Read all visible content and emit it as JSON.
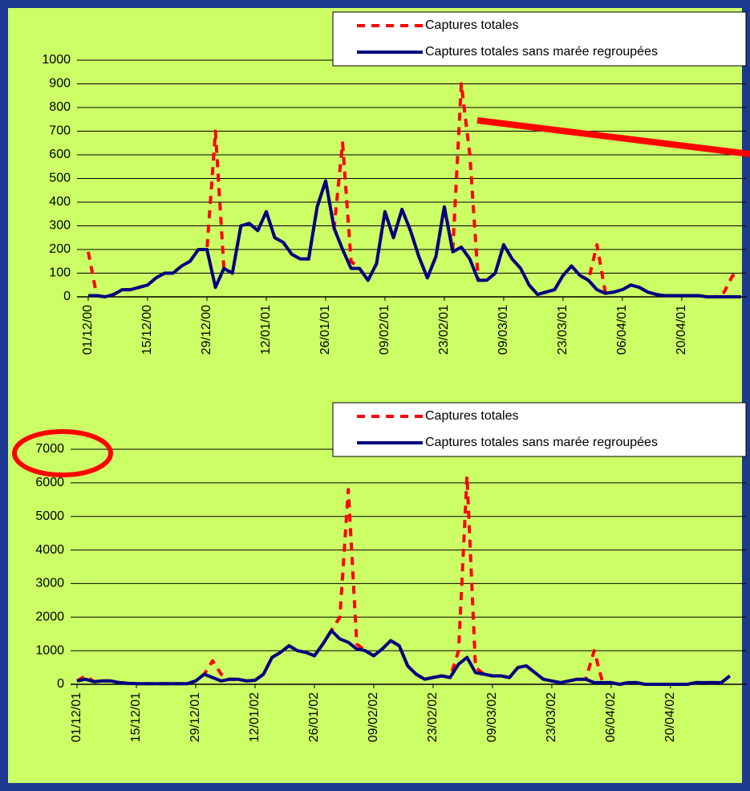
{
  "chart_data": [
    {
      "type": "line",
      "categories": [
        "01/12/00",
        null,
        null,
        null,
        null,
        null,
        null,
        "15/12/00",
        null,
        null,
        null,
        null,
        null,
        null,
        "29/12/00",
        null,
        null,
        null,
        null,
        null,
        null,
        "12/01/01",
        null,
        null,
        null,
        null,
        null,
        null,
        "26/01/01",
        null,
        null,
        null,
        null,
        null,
        null,
        "09/02/01",
        null,
        null,
        null,
        null,
        null,
        null,
        "23/02/01",
        null,
        null,
        null,
        null,
        null,
        null,
        "09/03/01",
        null,
        null,
        null,
        null,
        null,
        null,
        "23/03/01",
        null,
        null,
        null,
        null,
        null,
        null,
        "06/04/01",
        null,
        null,
        null,
        null,
        null,
        null,
        "20/04/01",
        null,
        null,
        null,
        null,
        null,
        null,
        null
      ],
      "series": [
        {
          "name": "Captures totales",
          "color": "#ff0000",
          "style": "dashed",
          "values": [
            190,
            5,
            0,
            10,
            30,
            30,
            40,
            50,
            80,
            100,
            100,
            130,
            150,
            200,
            200,
            700,
            120,
            100,
            300,
            310,
            280,
            360,
            250,
            230,
            180,
            160,
            160,
            380,
            490,
            290,
            650,
            150,
            120,
            70,
            140,
            360,
            250,
            370,
            280,
            170,
            80,
            170,
            380,
            200,
            900,
            600,
            70,
            70,
            100,
            220,
            160,
            120,
            50,
            10,
            20,
            30,
            90,
            130,
            90,
            70,
            220,
            15,
            20,
            30,
            50,
            40,
            20,
            10,
            5,
            5,
            5,
            5,
            5,
            0,
            0,
            20,
            90,
            90
          ]
        },
        {
          "name": "Captures totales sans marée regroupées",
          "color": "#000080",
          "style": "solid",
          "values": [
            5,
            5,
            0,
            10,
            30,
            30,
            40,
            50,
            80,
            100,
            100,
            130,
            150,
            200,
            200,
            40,
            120,
            100,
            300,
            310,
            280,
            360,
            250,
            230,
            180,
            160,
            160,
            380,
            490,
            290,
            200,
            120,
            120,
            70,
            140,
            360,
            250,
            370,
            280,
            170,
            80,
            170,
            380,
            190,
            210,
            160,
            70,
            70,
            100,
            220,
            160,
            120,
            50,
            10,
            20,
            30,
            90,
            130,
            90,
            70,
            30,
            15,
            20,
            30,
            50,
            40,
            20,
            10,
            5,
            5,
            5,
            5,
            5,
            0,
            0,
            0,
            0,
            0
          ]
        }
      ],
      "ylim": [
        0,
        1000
      ],
      "yticks": [
        0,
        100,
        200,
        300,
        400,
        500,
        600,
        700,
        800,
        900,
        1000
      ],
      "grid": true
    },
    {
      "type": "line",
      "categories": [
        "01/12/01",
        null,
        null,
        null,
        null,
        null,
        null,
        "15/12/01",
        null,
        null,
        null,
        null,
        null,
        null,
        "29/12/01",
        null,
        null,
        null,
        null,
        null,
        null,
        "12/01/02",
        null,
        null,
        null,
        null,
        null,
        null,
        "26/01/02",
        null,
        null,
        null,
        null,
        null,
        null,
        "09/02/02",
        null,
        null,
        null,
        null,
        null,
        null,
        "23/02/02",
        null,
        null,
        null,
        null,
        null,
        null,
        "09/03/02",
        null,
        null,
        null,
        null,
        null,
        null,
        "23/03/02",
        null,
        null,
        null,
        null,
        null,
        null,
        "06/04/02",
        null,
        null,
        null,
        null,
        null,
        null,
        "20/04/02",
        null,
        null,
        null,
        null,
        null,
        null,
        null
      ],
      "series": [
        {
          "name": "Captures totales",
          "color": "#ff0000",
          "style": "dashed",
          "values": [
            100,
            250,
            80,
            100,
            100,
            50,
            30,
            20,
            20,
            20,
            20,
            20,
            20,
            20,
            100,
            300,
            700,
            300,
            150,
            150,
            100,
            120,
            300,
            800,
            950,
            1150,
            1000,
            950,
            850,
            1200,
            1600,
            2000,
            5800,
            1200,
            1000,
            850,
            1050,
            1300,
            1150,
            550,
            300,
            150,
            200,
            250,
            200,
            1000,
            6200,
            500,
            300,
            250,
            250,
            200,
            500,
            550,
            350,
            150,
            100,
            50,
            100,
            150,
            150,
            1000,
            50,
            50,
            0,
            50,
            50,
            0,
            0,
            0,
            0,
            0,
            0,
            50,
            50,
            50,
            50,
            250
          ]
        },
        {
          "name": "Captures totales sans marée regroupées",
          "color": "#000080",
          "style": "solid",
          "values": [
            100,
            150,
            80,
            100,
            100,
            50,
            30,
            20,
            20,
            20,
            20,
            20,
            20,
            20,
            100,
            300,
            200,
            100,
            150,
            150,
            100,
            120,
            300,
            800,
            950,
            1150,
            1000,
            950,
            850,
            1200,
            1600,
            1350,
            1250,
            1050,
            1000,
            850,
            1050,
            1300,
            1150,
            550,
            300,
            150,
            200,
            250,
            200,
            600,
            800,
            350,
            300,
            250,
            250,
            200,
            500,
            550,
            350,
            150,
            100,
            50,
            100,
            150,
            150,
            50,
            50,
            50,
            0,
            50,
            50,
            0,
            0,
            0,
            0,
            0,
            0,
            50,
            50,
            50,
            50,
            250
          ]
        }
      ],
      "ylim": [
        0,
        7000
      ],
      "yticks": [
        0,
        1000,
        2000,
        3000,
        4000,
        5000,
        6000,
        7000
      ],
      "grid": true
    }
  ]
}
